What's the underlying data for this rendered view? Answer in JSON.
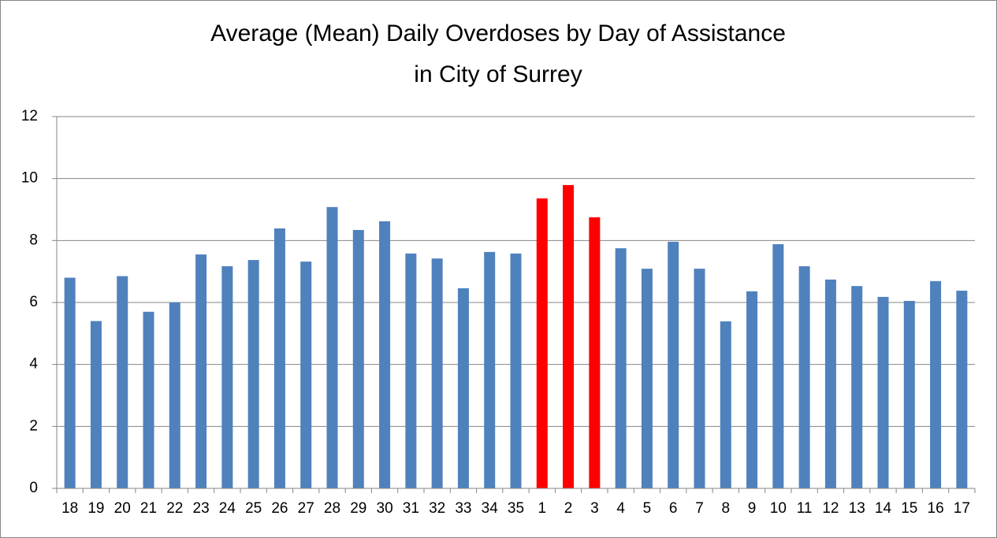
{
  "chart_data": {
    "type": "bar",
    "title": [
      "Average (Mean) Daily Overdoses by Day of Assistance",
      "in City of Surrey"
    ],
    "categories": [
      "18",
      "19",
      "20",
      "21",
      "22",
      "23",
      "24",
      "25",
      "26",
      "27",
      "28",
      "29",
      "30",
      "31",
      "32",
      "33",
      "34",
      "35",
      "1",
      "2",
      "3",
      "4",
      "5",
      "6",
      "7",
      "8",
      "9",
      "10",
      "11",
      "12",
      "13",
      "14",
      "15",
      "16",
      "17"
    ],
    "values": [
      6.8,
      5.4,
      6.85,
      5.7,
      6.0,
      7.55,
      7.17,
      7.37,
      8.39,
      7.32,
      9.08,
      8.34,
      8.62,
      7.58,
      7.42,
      6.46,
      7.63,
      7.58,
      9.36,
      9.79,
      8.75,
      7.75,
      7.09,
      7.96,
      7.09,
      5.39,
      6.36,
      7.88,
      7.17,
      6.74,
      6.53,
      6.18,
      6.05,
      6.69,
      6.38
    ],
    "colors": [
      "#4f81bd",
      "#4f81bd",
      "#4f81bd",
      "#4f81bd",
      "#4f81bd",
      "#4f81bd",
      "#4f81bd",
      "#4f81bd",
      "#4f81bd",
      "#4f81bd",
      "#4f81bd",
      "#4f81bd",
      "#4f81bd",
      "#4f81bd",
      "#4f81bd",
      "#4f81bd",
      "#4f81bd",
      "#4f81bd",
      "#ff0000",
      "#ff0000",
      "#ff0000",
      "#4f81bd",
      "#4f81bd",
      "#4f81bd",
      "#4f81bd",
      "#4f81bd",
      "#4f81bd",
      "#4f81bd",
      "#4f81bd",
      "#4f81bd",
      "#4f81bd",
      "#4f81bd",
      "#4f81bd",
      "#4f81bd",
      "#4f81bd"
    ],
    "ylim": [
      0,
      12
    ],
    "yticks": [
      0,
      2,
      4,
      6,
      8,
      10,
      12
    ],
    "grid": true
  }
}
